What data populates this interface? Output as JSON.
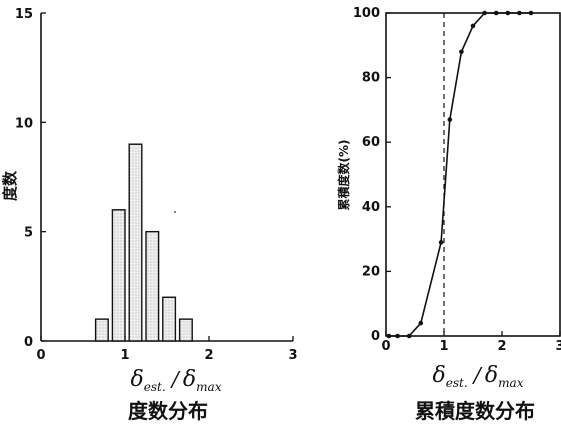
{
  "chart_data": [
    {
      "type": "bar",
      "caption": "度数分布",
      "ylabel": "度数",
      "xlabel": {
        "symbol": "δ",
        "sub1": "est.",
        "sub2": "max",
        "sep": "/"
      },
      "xlim": [
        0,
        3
      ],
      "ylim": [
        0,
        15
      ],
      "xticks": [
        "0",
        "1",
        "2",
        "3"
      ],
      "yticks": [
        "0",
        "5",
        "10",
        "15"
      ],
      "bars": [
        {
          "x0": 0.65,
          "x1": 0.8,
          "value": 1
        },
        {
          "x0": 0.85,
          "x1": 1.0,
          "value": 6
        },
        {
          "x0": 1.05,
          "x1": 1.2,
          "value": 9
        },
        {
          "x0": 1.25,
          "x1": 1.4,
          "value": 5
        },
        {
          "x0": 1.45,
          "x1": 1.6,
          "value": 2
        },
        {
          "x0": 1.65,
          "x1": 1.8,
          "value": 1
        }
      ],
      "bar_fill": "#e0e0e0"
    },
    {
      "type": "line",
      "caption": "累積度数分布",
      "ylabel": "累積度数(%)",
      "xlabel": {
        "symbol": "δ",
        "sub1": "est.",
        "sub2": "max",
        "sep": "/"
      },
      "xlim": [
        0,
        3
      ],
      "ylim": [
        0,
        100
      ],
      "xticks": [
        "0",
        "1",
        "2",
        "3"
      ],
      "yticks": [
        "0",
        "20",
        "40",
        "60",
        "80",
        "100"
      ],
      "reference_line_x": 1.0,
      "series": [
        {
          "x": [
            0.05,
            0.2,
            0.4,
            0.6,
            0.95,
            1.1,
            1.3,
            1.5,
            1.7,
            1.9,
            2.1,
            2.3,
            2.5
          ],
          "y": [
            0,
            0,
            0,
            4,
            29,
            67,
            88,
            96,
            100,
            100,
            100,
            100,
            100
          ]
        }
      ]
    }
  ]
}
